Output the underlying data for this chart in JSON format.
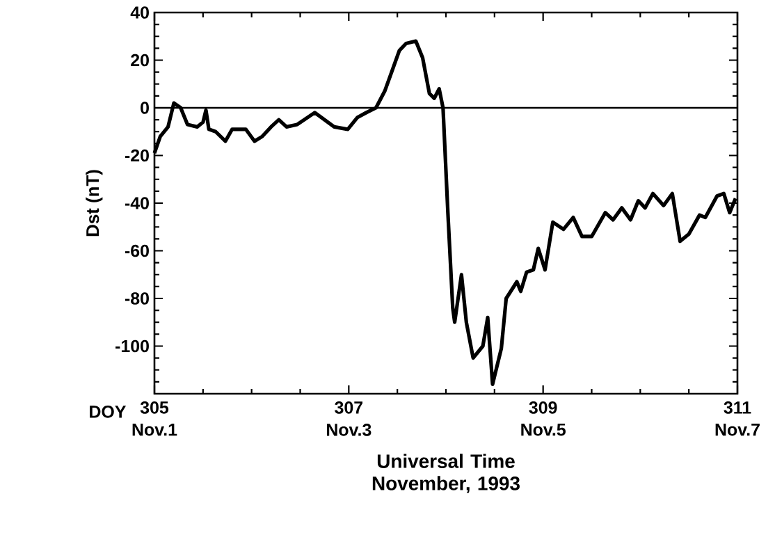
{
  "chart_data": {
    "type": "line",
    "xlabel": "Universal Time November, 1993",
    "ylabel": "Dst (nT)",
    "annotations": [
      "DOY"
    ],
    "x": [
      305.0,
      305.06,
      305.14,
      305.2,
      305.27,
      305.34,
      305.44,
      305.5,
      305.53,
      305.56,
      305.63,
      305.73,
      305.8,
      305.94,
      306.03,
      306.11,
      306.2,
      306.28,
      306.36,
      306.47,
      306.65,
      306.85,
      306.99,
      307.09,
      307.18,
      307.28,
      307.37,
      307.45,
      307.52,
      307.59,
      307.69,
      307.76,
      307.83,
      307.88,
      307.93,
      307.97,
      308.02,
      308.07,
      308.09,
      308.16,
      308.21,
      308.28,
      308.38,
      308.43,
      308.48,
      308.57,
      308.62,
      308.73,
      308.77,
      308.83,
      308.9,
      308.95,
      309.02,
      309.1,
      309.21,
      309.31,
      309.4,
      309.5,
      309.64,
      309.72,
      309.81,
      309.9,
      309.98,
      310.05,
      310.13,
      310.24,
      310.33,
      310.41,
      310.5,
      310.61,
      310.67,
      310.79,
      310.86,
      310.92,
      310.98
    ],
    "series": [
      {
        "color": "#000000",
        "values": [
          -19,
          -12,
          -8,
          2,
          0,
          -7,
          -8,
          -6,
          -1,
          -9,
          -10,
          -14,
          -9,
          -9,
          -14,
          -12,
          -8,
          -5,
          -8,
          -7,
          -2,
          -8,
          -9,
          -4,
          -2,
          0,
          7,
          16,
          24,
          27,
          28,
          21,
          6,
          4,
          8,
          0,
          -44,
          -84,
          -90,
          -70,
          -90,
          -105,
          -100,
          -88,
          -116,
          -101,
          -80,
          -73,
          -77,
          -69,
          -68,
          -59,
          -68,
          -48,
          -51,
          -46,
          -54,
          -54,
          -44,
          -47,
          -42,
          -47,
          -39,
          -42,
          -36,
          -41,
          -36,
          -56,
          -53,
          -45,
          -46,
          -37,
          -36,
          -44,
          -38
        ]
      }
    ],
    "xlim": [
      305,
      311
    ],
    "xticks": [
      305,
      307,
      309,
      311
    ],
    "x2lim": [
      "1993-11-01",
      "1993-11-07"
    ],
    "x2ticks": [
      {
        "value": "1993-11-01",
        "label": "Nov.1"
      },
      {
        "value": "1993-11-03",
        "label": "Nov.3"
      },
      {
        "value": "1993-11-05",
        "label": "Nov.5"
      },
      {
        "value": "1993-11-07",
        "label": "Nov.7"
      }
    ],
    "ylim": [
      -120,
      40
    ],
    "yticks": [
      {
        "value": -120,
        "label": null
      },
      -100,
      -80,
      -60,
      -40,
      -20,
      0,
      20,
      40
    ],
    "ref_lines": [
      {
        "axis": "y",
        "value": 0,
        "color": "#000000"
      }
    ],
    "grid": false,
    "marker": "none",
    "line_style": "solid"
  }
}
